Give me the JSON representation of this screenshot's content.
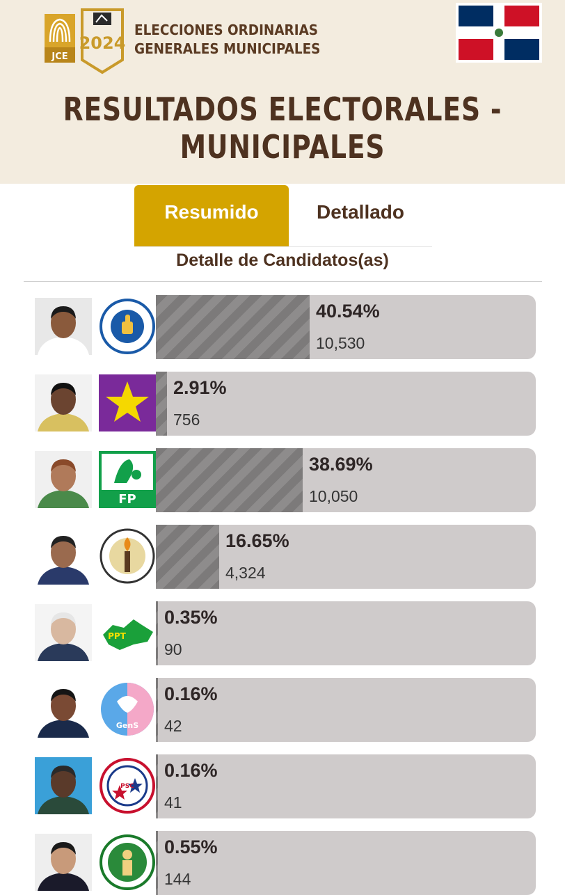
{
  "header": {
    "jce_logo_text": "JCE",
    "year": "2024",
    "line1": "ELECCIONES ORDINARIAS",
    "line2": "GENERALES MUNICIPALES",
    "title_line1": "RESULTADOS ELECTORALES -",
    "title_line2": "MUNICIPALES"
  },
  "tabs": {
    "active": "Resumido",
    "inactive": "Detallado"
  },
  "section_title": "Detalle de Candidatos(as)",
  "colors": {
    "gold": "#d4a400",
    "brown": "#4e3220",
    "bar_bg": "#cfcbcb",
    "bar_fill": "#7c7a7a"
  },
  "candidates": [
    {
      "percent_label": "40.54%",
      "votes": "10,530",
      "percent": 40.54,
      "party_icon": "prm-thumbs-up-logo"
    },
    {
      "percent_label": "2.91%",
      "votes": "756",
      "percent": 2.91,
      "party_icon": "yellow-star-purple-logo"
    },
    {
      "percent_label": "38.69%",
      "votes": "10,050",
      "percent": 38.69,
      "party_icon": "fp-green-logo",
      "logo_text": "FP"
    },
    {
      "percent_label": "16.65%",
      "votes": "4,324",
      "percent": 16.65,
      "party_icon": "prd-torch-seal-logo"
    },
    {
      "percent_label": "0.35%",
      "votes": "90",
      "percent": 0.35,
      "party_icon": "ppt-green-map-logo",
      "logo_text": "PPT"
    },
    {
      "percent_label": "0.16%",
      "votes": "42",
      "percent": 0.16,
      "party_icon": "gens-bird-logo",
      "logo_text": "GenS"
    },
    {
      "percent_label": "0.16%",
      "votes": "41",
      "percent": 0.16,
      "party_icon": "psc-stars-seal-logo",
      "logo_text": "PSC"
    },
    {
      "percent_label": "0.55%",
      "votes": "144",
      "percent": 0.55,
      "party_icon": "green-seal-figure-logo"
    }
  ]
}
